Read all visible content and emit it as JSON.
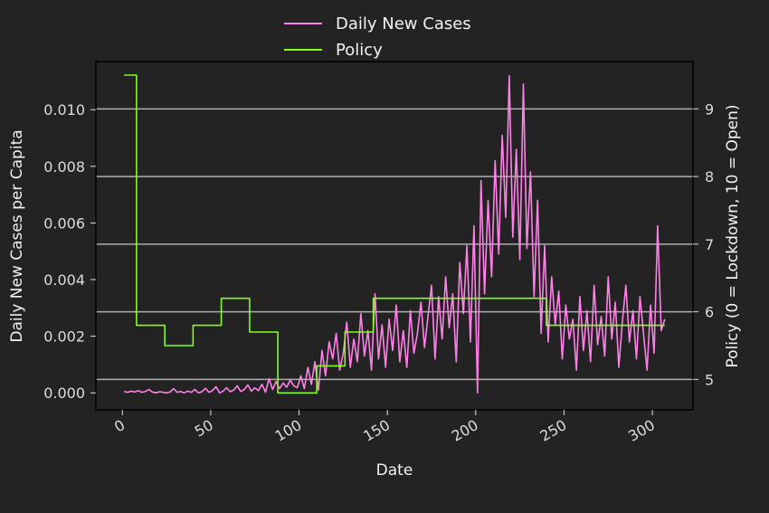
{
  "chart_data": {
    "type": "line",
    "xlabel": "Date",
    "ylabel_left": "Daily New Cases per Capita",
    "ylabel_right": "Policy (0 = Lockdown, 10 = Open)",
    "xlim": [
      -15,
      323
    ],
    "ylim_left": [
      -0.0006,
      0.0117
    ],
    "ylim_right": [
      4.55,
      9.7
    ],
    "x_ticks": [
      0,
      50,
      100,
      150,
      200,
      250,
      300
    ],
    "x_tick_labels": [
      "0",
      "50",
      "100",
      "150",
      "200",
      "250",
      "300"
    ],
    "y_ticks_left": [
      0.0,
      0.002,
      0.004,
      0.006,
      0.008,
      0.01
    ],
    "y_tick_labels_left": [
      "0.000",
      "0.002",
      "0.004",
      "0.006",
      "0.008",
      "0.010"
    ],
    "y_ticks_right": [
      5,
      6,
      7,
      8,
      9
    ],
    "y_tick_labels_right": [
      "5",
      "6",
      "7",
      "8",
      "9"
    ],
    "grid": "horizontal lines at right-axis ticks",
    "legend_position": "top-center, above plot",
    "series": [
      {
        "name": "Daily New Cases",
        "axis": "left",
        "color": "#ff80e8",
        "x": [
          1,
          3,
          5,
          7,
          9,
          11,
          13,
          15,
          17,
          19,
          21,
          23,
          25,
          27,
          29,
          31,
          33,
          35,
          37,
          39,
          41,
          43,
          45,
          47,
          49,
          51,
          53,
          55,
          57,
          59,
          61,
          63,
          65,
          67,
          69,
          71,
          73,
          75,
          77,
          79,
          81,
          83,
          85,
          87,
          89,
          91,
          93,
          95,
          97,
          99,
          101,
          103,
          105,
          107,
          109,
          111,
          113,
          115,
          117,
          119,
          121,
          123,
          125,
          127,
          129,
          131,
          133,
          135,
          137,
          139,
          141,
          143,
          145,
          147,
          149,
          151,
          153,
          155,
          157,
          159,
          161,
          163,
          165,
          167,
          169,
          171,
          173,
          175,
          177,
          179,
          181,
          183,
          185,
          187,
          189,
          191,
          193,
          195,
          197,
          199,
          201,
          203,
          205,
          207,
          209,
          211,
          213,
          215,
          217,
          219,
          221,
          223,
          225,
          227,
          229,
          231,
          233,
          235,
          237,
          239,
          241,
          243,
          245,
          247,
          249,
          251,
          253,
          255,
          257,
          259,
          261,
          263,
          265,
          267,
          269,
          271,
          273,
          275,
          277,
          279,
          281,
          283,
          285,
          287,
          289,
          291,
          293,
          295,
          297,
          299,
          301,
          303,
          305,
          307
        ],
        "values": [
          5e-05,
          2e-05,
          6e-05,
          3e-05,
          8e-05,
          2e-05,
          5e-05,
          0.00012,
          3e-05,
          0.0,
          4e-05,
          2e-05,
          0.0,
          3e-05,
          0.00015,
          2e-05,
          5e-05,
          0.0,
          6e-05,
          2e-05,
          0.00012,
          0.0,
          4e-05,
          0.00016,
          2e-05,
          8e-05,
          0.00022,
          0.0,
          6e-05,
          0.00018,
          4e-05,
          0.0001,
          0.00025,
          5e-05,
          0.00012,
          0.00028,
          6e-05,
          0.00018,
          8e-05,
          0.0003,
          2e-05,
          0.0005,
          0.00012,
          0.0004,
          0.00015,
          0.00035,
          0.0002,
          0.00045,
          0.00025,
          0.00018,
          0.0006,
          0.00015,
          0.0009,
          0.0003,
          0.0011,
          0.0001,
          0.0015,
          0.0006,
          0.0018,
          0.0012,
          0.0021,
          0.0008,
          0.0014,
          0.0025,
          0.0009,
          0.0019,
          0.0011,
          0.0028,
          0.0013,
          0.0022,
          0.0008,
          0.0035,
          0.0012,
          0.0024,
          0.0009,
          0.0026,
          0.0015,
          0.0031,
          0.0011,
          0.0022,
          0.0009,
          0.0029,
          0.0014,
          0.0021,
          0.0032,
          0.0016,
          0.0027,
          0.0038,
          0.0012,
          0.0034,
          0.0019,
          0.0041,
          0.0023,
          0.0035,
          0.0011,
          0.0046,
          0.0028,
          0.0052,
          0.0018,
          0.0059,
          0.0,
          0.0075,
          0.0035,
          0.0068,
          0.0041,
          0.0082,
          0.0049,
          0.0091,
          0.0062,
          0.0112,
          0.0055,
          0.0086,
          0.0047,
          0.0109,
          0.0051,
          0.0078,
          0.0034,
          0.0068,
          0.0021,
          0.0052,
          0.0018,
          0.0041,
          0.0024,
          0.0036,
          0.0012,
          0.0031,
          0.0019,
          0.0026,
          0.0008,
          0.0034,
          0.0015,
          0.0029,
          0.0011,
          0.0038,
          0.0017,
          0.0027,
          0.0013,
          0.0041,
          0.0019,
          0.0032,
          0.0009,
          0.0025,
          0.0038,
          0.0018,
          0.0029,
          0.0012,
          0.0034,
          0.0021,
          0.0008,
          0.0031,
          0.0014,
          0.0059,
          0.0022,
          0.0026
        ]
      },
      {
        "name": "Policy",
        "axis": "right",
        "color": "#80ff20",
        "x": [
          1,
          8,
          8,
          24,
          24,
          40,
          40,
          56,
          56,
          72,
          72,
          88,
          88,
          110,
          110,
          126,
          126,
          142,
          142,
          240,
          240,
          307
        ],
        "values": [
          9.5,
          9.5,
          5.8,
          5.8,
          5.5,
          5.5,
          5.8,
          5.8,
          6.2,
          6.2,
          5.7,
          5.7,
          4.8,
          4.8,
          5.2,
          5.2,
          5.7,
          5.7,
          6.2,
          6.2,
          5.8,
          5.8
        ]
      }
    ]
  }
}
